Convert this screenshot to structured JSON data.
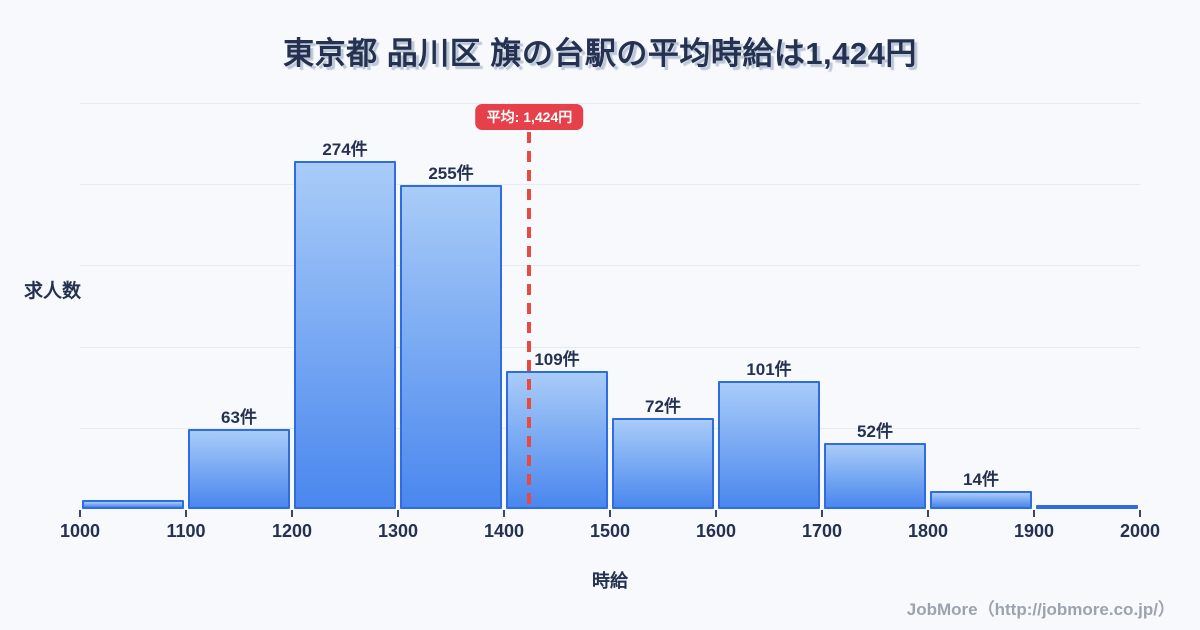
{
  "title": "東京都 品川区 旗の台駅の平均時給は1,424円",
  "footer": "JobMore（http://jobmore.co.jp/）",
  "chart_data": {
    "type": "bar",
    "subtype": "histogram",
    "title": "東京都 品川区 旗の台駅の平均時給は1,424円",
    "xlabel": "時給",
    "ylabel": "求人数",
    "unit": "件",
    "bin_edges": [
      1000,
      1100,
      1200,
      1300,
      1400,
      1500,
      1600,
      1700,
      1800,
      1900,
      2000
    ],
    "categories": [
      "1000-1100",
      "1100-1200",
      "1200-1300",
      "1300-1400",
      "1400-1500",
      "1500-1600",
      "1600-1700",
      "1700-1800",
      "1800-1900",
      "1900-2000"
    ],
    "values": [
      7,
      63,
      274,
      255,
      109,
      72,
      101,
      52,
      14,
      3
    ],
    "bar_labels": [
      "",
      "63件",
      "274件",
      "255件",
      "109件",
      "72件",
      "101件",
      "52件",
      "14件",
      ""
    ],
    "x_tick_labels": [
      "1000",
      "1100",
      "1200",
      "1300",
      "1400",
      "1500",
      "1600",
      "1700",
      "1800",
      "1900",
      "2000"
    ],
    "xlim": [
      1000,
      2000
    ],
    "ylim": [
      0,
      320
    ],
    "gridline_values": [
      64,
      128,
      192,
      256,
      320
    ],
    "grid": true,
    "legend": "none",
    "mean_value": 1424,
    "mean_badge_label": "平均: 1,424円",
    "colors": {
      "background": "#f7f9fc",
      "bar_fill_top": "#a9ccf8",
      "bar_fill_bottom": "#4a87ee",
      "bar_border": "#2f6ce0",
      "mean_line": "#e84a42",
      "badge_background": "#e6404a",
      "badge_text": "#ffffff",
      "text_dark": "#243150",
      "gridline": "#e7ebf3",
      "footer_text": "#9ca3af"
    }
  }
}
